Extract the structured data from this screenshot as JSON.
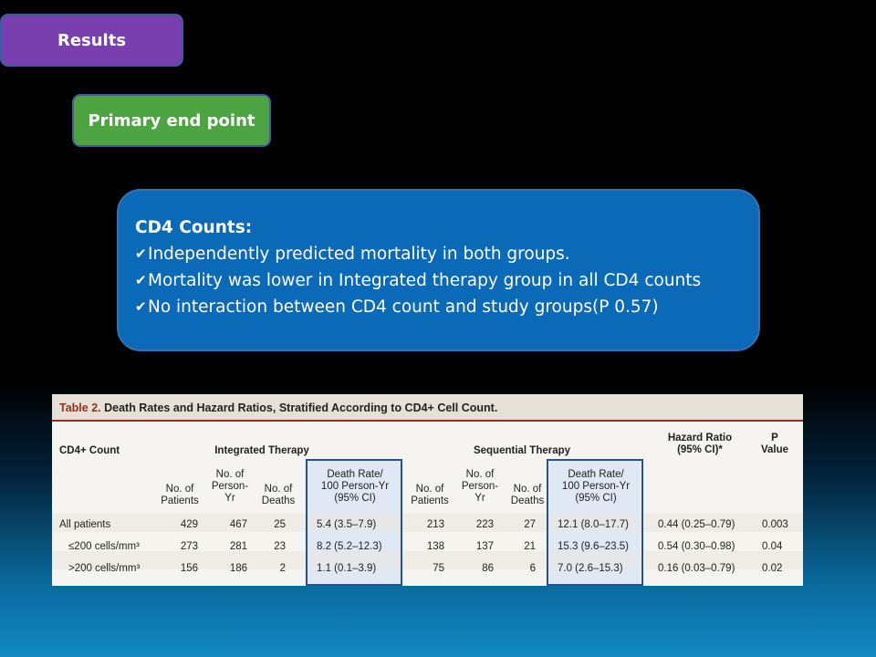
{
  "slide": {
    "results_label": "Results",
    "primary_label": "Primary end point",
    "cd4_box": {
      "heading": "CD4 Counts:",
      "bullets": [
        "Independently predicted mortality in both groups.",
        "Mortality was lower in Integrated therapy group in all CD4 counts",
        "No interaction between CD4 count and study groups(P 0.57)"
      ]
    }
  },
  "table": {
    "title_prefix": "Table 2.",
    "title_rest": " Death Rates and Hazard Ratios, Stratified According to CD4+ Cell Count.",
    "headers": {
      "cd4": "CD4+ Count",
      "integrated": "Integrated Therapy",
      "sequential": "Sequential Therapy",
      "hazard": "Hazard Ratio\n(95% CI)*",
      "pvalue": "P\nValue",
      "patients": "No. of\nPatients",
      "person_yr": "No. of\nPerson-\nYr",
      "deaths": "No. of\nDeaths",
      "rate": "Death Rate/\n100 Person-Yr\n(95% CI)"
    },
    "rows": [
      {
        "label": "All patients",
        "i_pat": "429",
        "i_py": "467",
        "i_d": "25",
        "i_rate": "5.4 (3.5–7.9)",
        "s_pat": "213",
        "s_py": "223",
        "s_d": "27",
        "s_rate": "12.1 (8.0–17.7)",
        "hr": "0.44 (0.25–0.79)",
        "p": "0.003"
      },
      {
        "label": "≤200 cells/mm³",
        "i_pat": "273",
        "i_py": "281",
        "i_d": "23",
        "i_rate": "8.2 (5.2–12.3)",
        "s_pat": "138",
        "s_py": "137",
        "s_d": "21",
        "s_rate": "15.3 (9.6–23.5)",
        "hr": "0.54 (0.30–0.98)",
        "p": "0.04"
      },
      {
        "label": ">200 cells/mm³",
        "i_pat": "156",
        "i_py": "186",
        "i_d": "2",
        "i_rate": "1.1 (0.1–3.9)",
        "s_pat": "75",
        "s_py": "86",
        "s_d": "6",
        "s_rate": "7.0 (2.6–15.3)",
        "hr": "0.16 (0.03–0.79)",
        "p": "0.02"
      }
    ]
  }
}
